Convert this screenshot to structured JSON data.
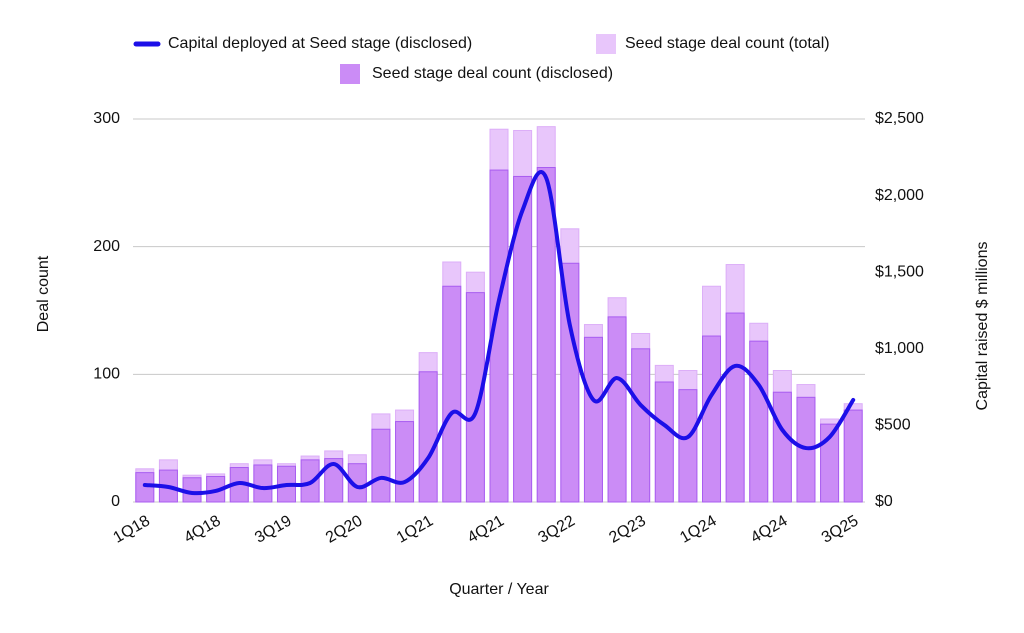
{
  "chart_data": {
    "type": "combo",
    "x_label": "Quarter / Year",
    "y_label": "Deal count",
    "y2_label": "Capital raised $ millions",
    "categories": [
      "1Q18",
      null,
      null,
      "4Q18",
      null,
      null,
      "3Q19",
      null,
      null,
      "2Q20",
      null,
      null,
      "1Q21",
      null,
      null,
      "4Q21",
      null,
      null,
      "3Q22",
      null,
      null,
      "2Q23",
      null,
      null,
      "1Q24",
      null,
      null,
      "4Q24",
      null,
      null,
      "3Q25"
    ],
    "ylim": [
      0,
      300
    ],
    "yticks": [
      0,
      100,
      200,
      300
    ],
    "y2lim": [
      0,
      2500
    ],
    "y2ticks": [
      {
        "value": 0,
        "label": "$0"
      },
      {
        "value": 500,
        "label": "$500"
      },
      {
        "value": 1000,
        "label": "$1,000"
      },
      {
        "value": 1500,
        "label": "$1,500"
      },
      {
        "value": 2000,
        "label": "$2,000"
      },
      {
        "value": 2500,
        "label": "$2,500"
      }
    ],
    "grid": true,
    "legend": "top",
    "series": [
      {
        "name": "Capital deployed at Seed stage (disclosed)",
        "type": "line",
        "axis": "y2",
        "color": "#1c0fe8",
        "values": [
          111,
          98,
          59,
          72,
          124,
          91,
          111,
          124,
          248,
          98,
          157,
          130,
          287,
          581,
          581,
          1318,
          1906,
          2115,
          1155,
          666,
          809,
          633,
          503,
          424,
          698,
          888,
          764,
          470,
          352,
          424,
          666
        ]
      },
      {
        "name": "Seed stage deal count (total)",
        "type": "bar",
        "color": "#e8c6fb",
        "values": [
          26,
          33,
          21,
          22,
          30,
          33,
          30,
          36,
          40,
          37,
          69,
          72,
          117,
          188,
          180,
          292,
          291,
          294,
          214,
          139,
          160,
          132,
          107,
          103,
          169,
          186,
          140,
          103,
          92,
          65,
          77
        ]
      },
      {
        "name": "Seed stage deal count (disclosed)",
        "type": "bar",
        "color": "#cb8cf6",
        "values": [
          23,
          25,
          19,
          20,
          27,
          29,
          28,
          33,
          34,
          30,
          57,
          63,
          102,
          169,
          164,
          260,
          255,
          262,
          187,
          129,
          145,
          120,
          94,
          88,
          130,
          148,
          126,
          86,
          82,
          61,
          72
        ]
      }
    ]
  }
}
